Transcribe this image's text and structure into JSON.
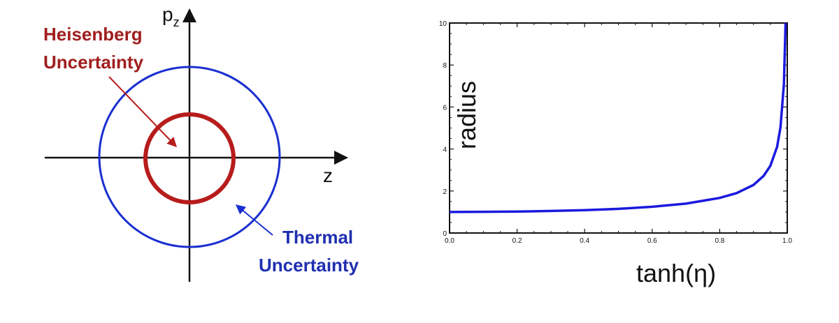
{
  "left_diagram": {
    "label_heisenberg_line1": "Heisenberg",
    "label_heisenberg_line2": "Uncertainty",
    "label_thermal_line1": "Thermal",
    "label_thermal_line2": "Uncertainty",
    "axis_vertical": "p",
    "axis_vertical_sub": "z",
    "axis_horizontal": "z",
    "colors": {
      "heisenberg": "#b71c1c",
      "thermal": "#1a2fd0",
      "axes": "#111111"
    }
  },
  "chart_data": {
    "type": "line",
    "xlabel": "tanh(η)",
    "ylabel": "radius",
    "xlim": [
      0.0,
      1.0
    ],
    "ylim": [
      0,
      10
    ],
    "x_ticks": [
      "0.0",
      "0.2",
      "0.4",
      "0.6",
      "0.8",
      "1.0"
    ],
    "y_ticks": [
      "0",
      "2",
      "4",
      "6",
      "8",
      "10"
    ],
    "series": [
      {
        "color": "#1a1adf",
        "x": [
          0.0,
          0.1,
          0.2,
          0.3,
          0.4,
          0.5,
          0.6,
          0.7,
          0.8,
          0.85,
          0.9,
          0.93,
          0.95,
          0.97,
          0.98,
          0.99
        ],
        "y": [
          1.0,
          1.01,
          1.02,
          1.05,
          1.09,
          1.15,
          1.25,
          1.4,
          1.67,
          1.9,
          2.29,
          2.72,
          3.2,
          4.11,
          5.03,
          7.09
        ]
      }
    ]
  }
}
